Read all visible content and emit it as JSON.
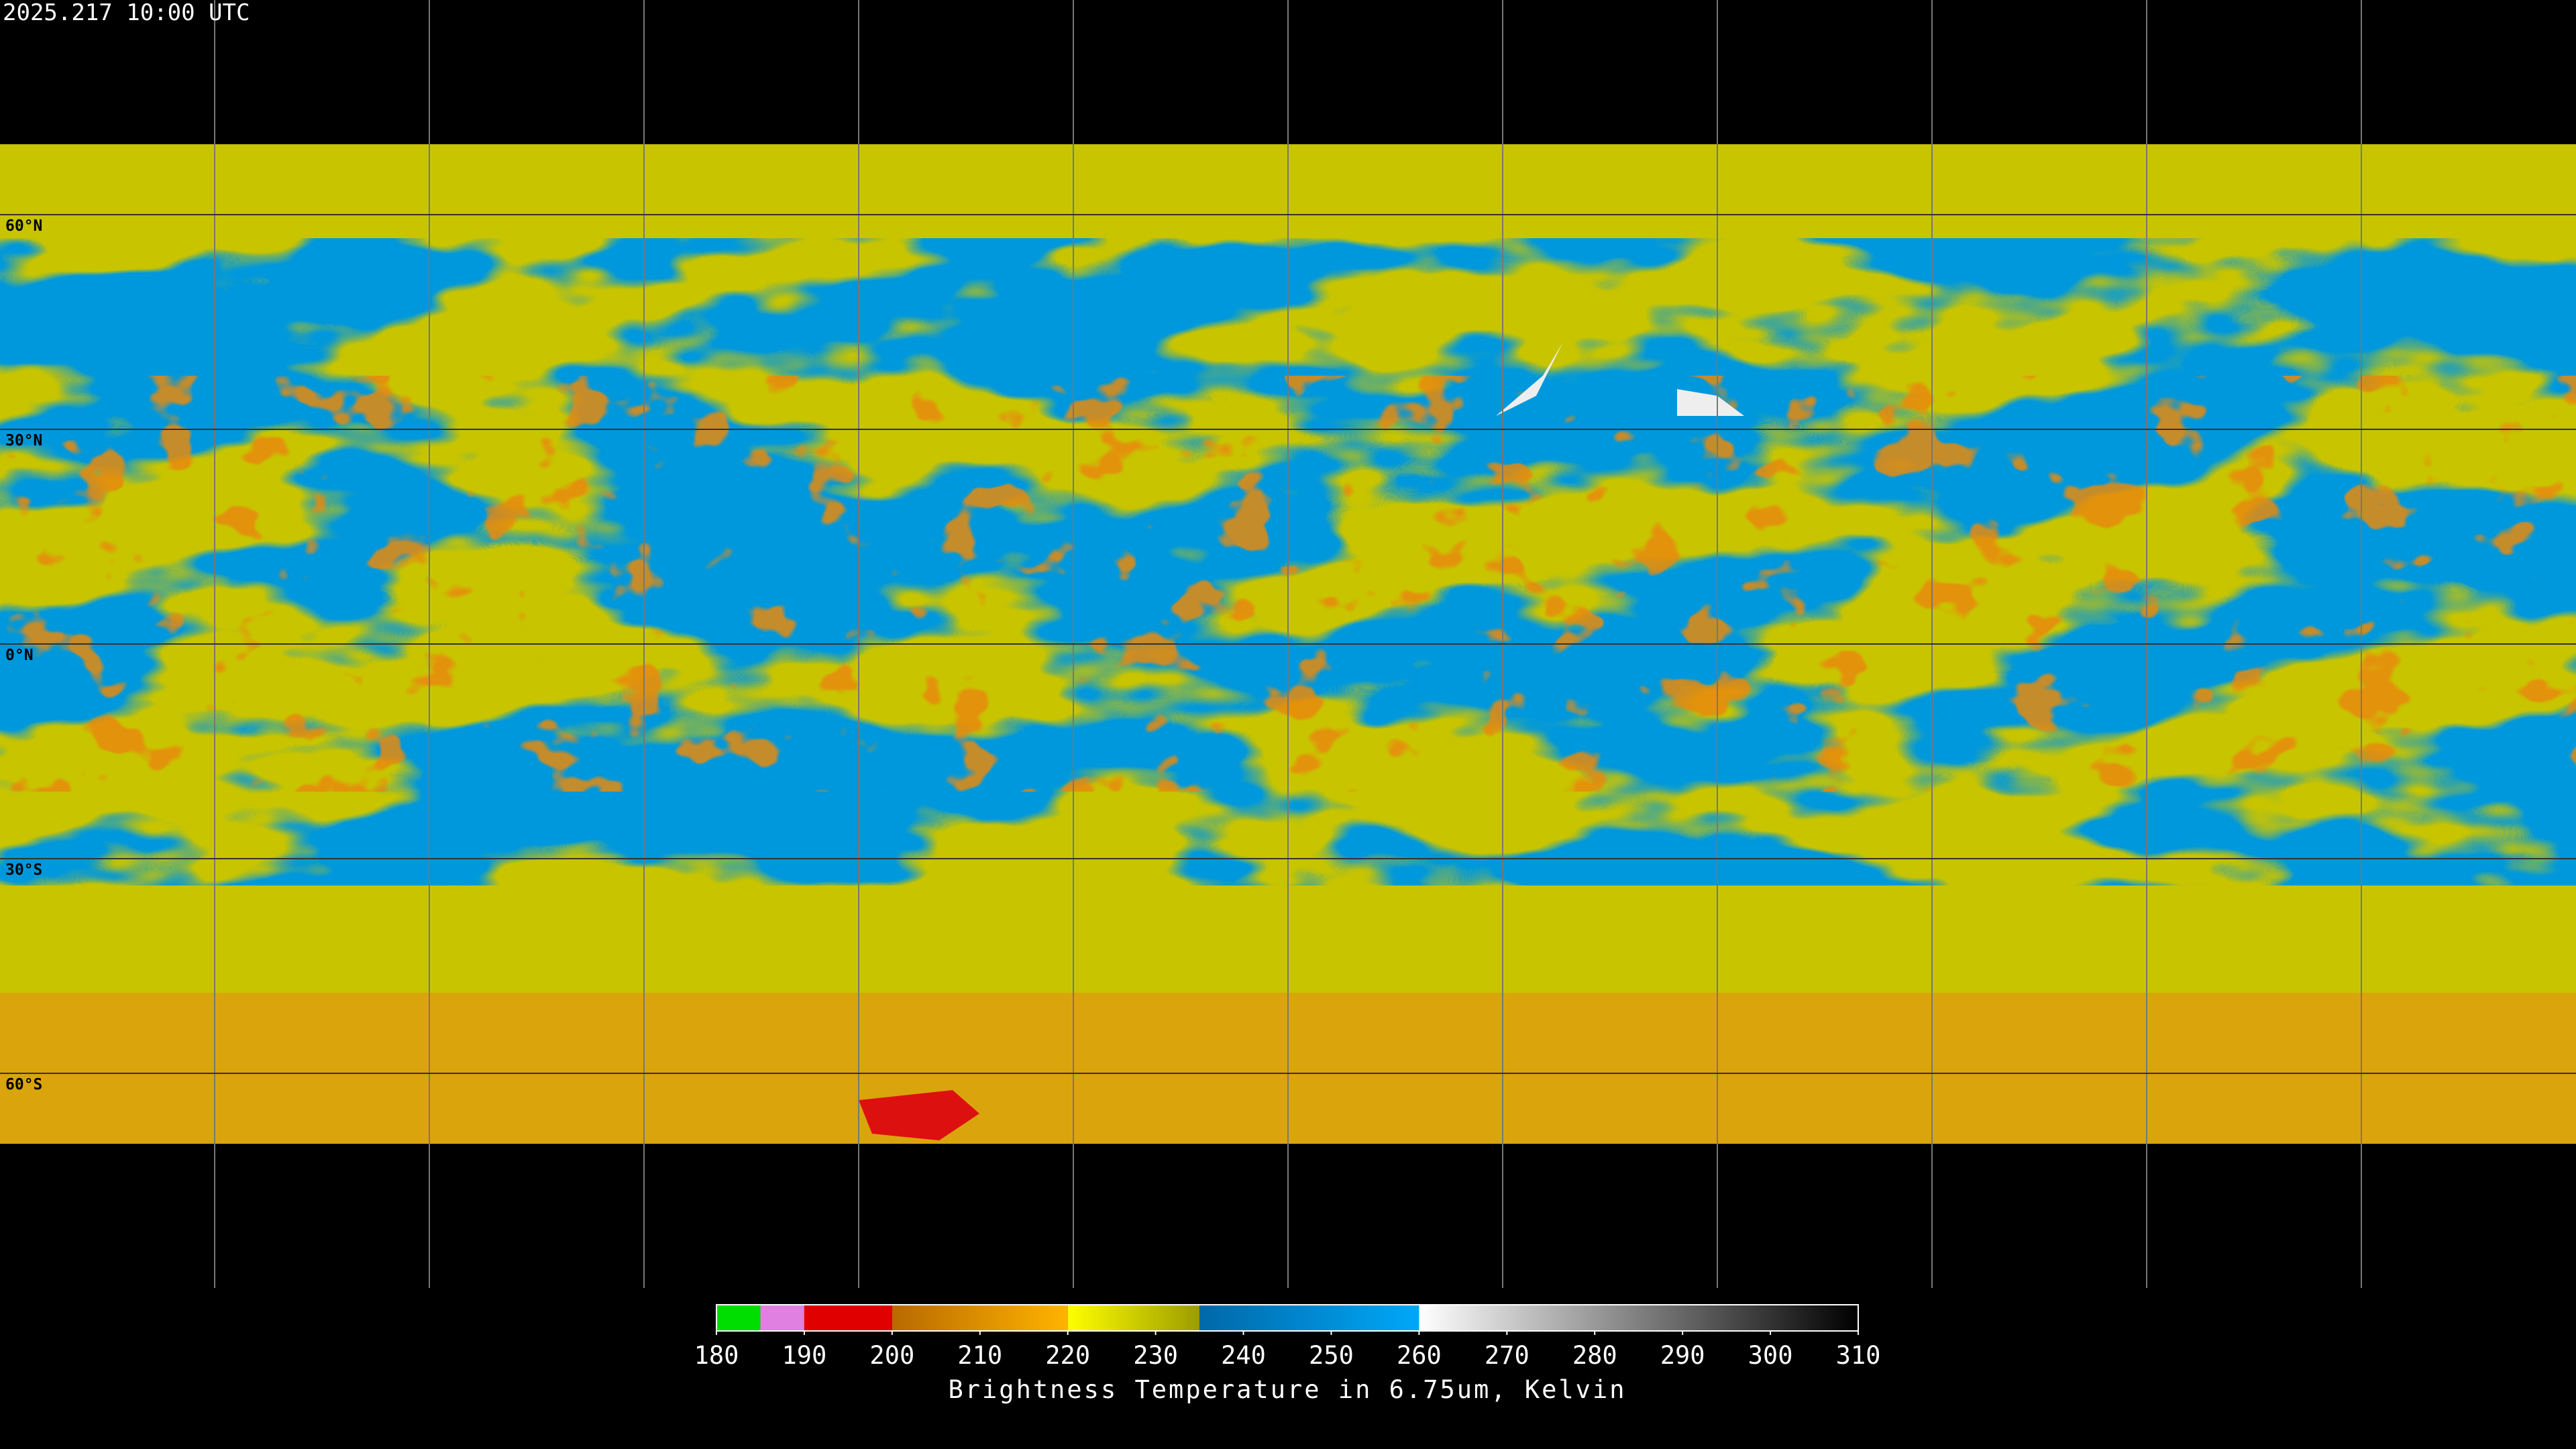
{
  "header": {
    "timestamp": "2025.217 10:00 UTC"
  },
  "map": {
    "lat_labels": [
      "60°N",
      "30°N",
      "0°N",
      "30°S",
      "60°S"
    ]
  },
  "colorbar": {
    "range": [
      180,
      310
    ],
    "ticks": [
      180,
      190,
      200,
      210,
      220,
      230,
      240,
      250,
      260,
      270,
      280,
      290,
      300,
      310
    ],
    "label": "Brightness Temperature in 6.75um, Kelvin",
    "segments": [
      {
        "from": 180,
        "to": 185,
        "colors": [
          "#00dd00",
          "#00dd00"
        ]
      },
      {
        "from": 185,
        "to": 190,
        "colors": [
          "#e080e0",
          "#e080e0"
        ]
      },
      {
        "from": 190,
        "to": 200,
        "colors": [
          "#e00000",
          "#e00000"
        ]
      },
      {
        "from": 200,
        "to": 220,
        "colors": [
          "#b86a00",
          "#ffb400"
        ]
      },
      {
        "from": 220,
        "to": 235,
        "colors": [
          "#ffff00",
          "#9c9c00"
        ]
      },
      {
        "from": 235,
        "to": 260,
        "colors": [
          "#0068a8",
          "#00a8f8"
        ]
      },
      {
        "from": 260,
        "to": 310,
        "colors": [
          "#ffffff",
          "#000000"
        ]
      }
    ]
  }
}
